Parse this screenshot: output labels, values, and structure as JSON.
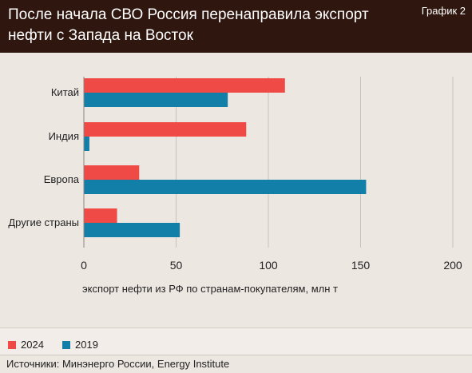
{
  "header": {
    "title": "После начала СВО Россия перенаправила экспорт нефти с Запада на Восток",
    "chart_number": "График 2"
  },
  "colors": {
    "header_bg": "#2f160e",
    "series_2024": "#ef4a46",
    "series_2019": "#127fa8",
    "grid": "#c9c3be"
  },
  "chart_data": {
    "type": "bar",
    "orientation": "horizontal",
    "title": "После начала СВО Россия перенаправила экспорт нефти с Запада на Восток",
    "categories": [
      "Китай",
      "Индия",
      "Европа",
      "Другие страны"
    ],
    "series": [
      {
        "name": "2024",
        "values": [
          109,
          88,
          30,
          18
        ]
      },
      {
        "name": "2019",
        "values": [
          78,
          3,
          153,
          52
        ]
      }
    ],
    "xlim": [
      0,
      200
    ],
    "xticks": [
      0,
      50,
      100,
      150,
      200
    ],
    "xlabel": "экспорт нефти из РФ по странам-покупателям, млн т",
    "grid": "vertical"
  },
  "legend": {
    "items": [
      {
        "label": "2024"
      },
      {
        "label": "2019"
      }
    ]
  },
  "source": {
    "text": "Источники: Минэнерго России, Energy Institute"
  }
}
